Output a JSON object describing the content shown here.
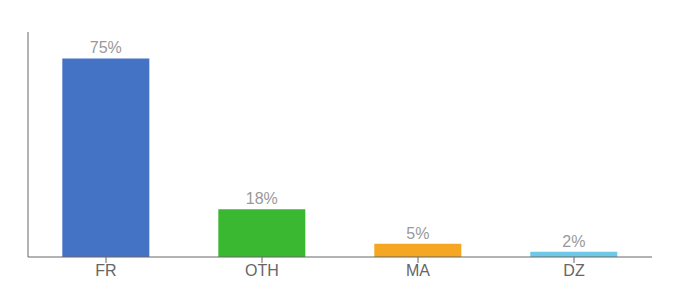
{
  "chart_data": {
    "type": "bar",
    "categories": [
      "FR",
      "OTH",
      "MA",
      "DZ"
    ],
    "values": [
      75,
      18,
      5,
      2
    ],
    "value_labels": [
      "75%",
      "18%",
      "5%",
      "2%"
    ],
    "colors": [
      "#4472c4",
      "#3bb832",
      "#f5a623",
      "#70c8e8"
    ],
    "ylim": [
      0,
      85
    ],
    "grid": false,
    "data_labels": true,
    "tick_labels": "x"
  }
}
